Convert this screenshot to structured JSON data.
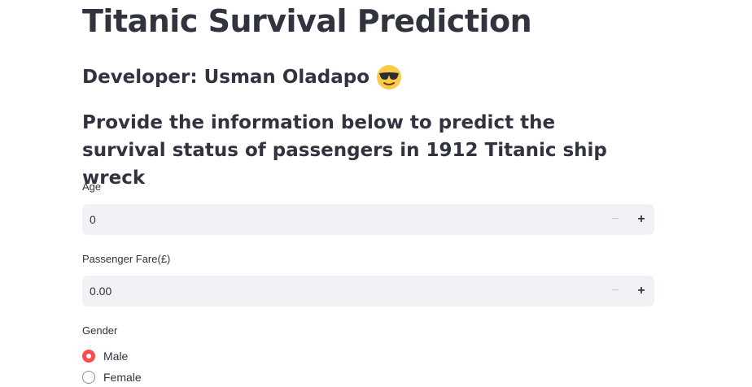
{
  "page": {
    "title": "Titanic Survival Prediction",
    "developer": "Developer: Usman Oladapo",
    "developer_emoji": "sunglasses-face-icon",
    "instructions": "Provide the information below to predict the survival status of passengers in 1912 Titanic ship wreck"
  },
  "form": {
    "age": {
      "label": "Age",
      "value": "0",
      "minus": "−",
      "plus": "+"
    },
    "fare": {
      "label": "Passenger Fare(£)",
      "value": "0.00",
      "minus": "−",
      "plus": "+"
    },
    "gender": {
      "label": "Gender",
      "options": [
        "Male",
        "Female"
      ],
      "selected": "Male"
    }
  },
  "colors": {
    "accent": "#ff4b4b",
    "text": "#31333f",
    "input_bg": "#f0f2f6"
  }
}
